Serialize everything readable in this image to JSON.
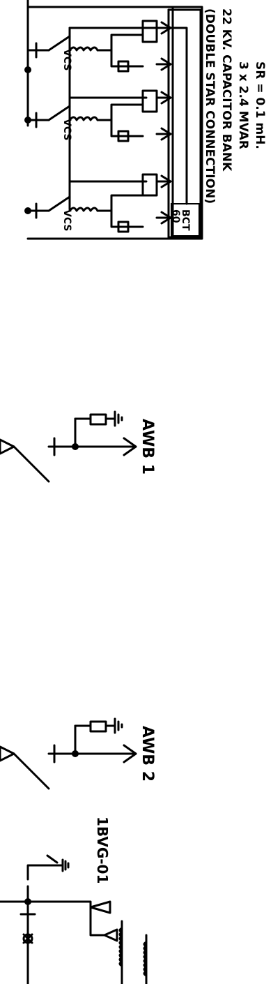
{
  "capacitor_bank": {
    "tag_line1": "BCT",
    "tag_line2": "60",
    "switch_label": "VCS",
    "description": [
      "(DOUBLE  STAR CONNECTION)",
      "22  KV.  CAPACITOR  BANK",
      "3  x  2.4  MVAR",
      "SR  =  0.1  mH."
    ]
  },
  "feeders": [
    {
      "label": "AWB  1"
    },
    {
      "label": "AWB  2"
    }
  ],
  "bay_label": "1BVG-01"
}
